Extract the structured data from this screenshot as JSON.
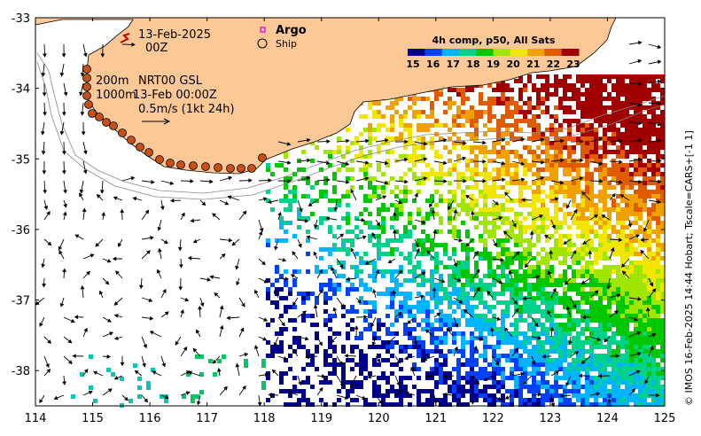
{
  "map": {
    "lon_range": [
      114,
      125
    ],
    "lat_range": [
      -38.5,
      -33
    ],
    "lon_ticks": [
      "114",
      "115",
      "116",
      "117",
      "118",
      "119",
      "120",
      "121",
      "122",
      "123",
      "124",
      "125"
    ],
    "lat_ticks": [
      "-33",
      "-34",
      "-35",
      "-36",
      "-37",
      "-38"
    ],
    "land_color": "#fcc896",
    "coast_color": "#888888"
  },
  "annotations": {
    "date": "13-Feb-2025",
    "time": "00Z",
    "depth_200": "200m",
    "depth_1000": "1000m",
    "product": "NRT00 GSL",
    "product_time": "13-Feb 00:00Z",
    "vector_scale": "0.5m/s (1kt 24h)"
  },
  "legend": {
    "argo_label": "Argo",
    "ship_label": "Ship",
    "argo_color": "#e020e0"
  },
  "colorbar": {
    "title": "4h comp, p50, All Sats",
    "labels": [
      "15",
      "16",
      "17",
      "18",
      "19",
      "20",
      "21",
      "22",
      "23"
    ],
    "colors": [
      "#00008c",
      "#0040ff",
      "#00b4ff",
      "#00d28c",
      "#00c800",
      "#a0e600",
      "#f0e600",
      "#f0a000",
      "#e05a00",
      "#a00000"
    ]
  },
  "credit": "© IMOS 16-Feb-2025 14:44 Hobart; Tscale=CARS+[-1 1]"
}
